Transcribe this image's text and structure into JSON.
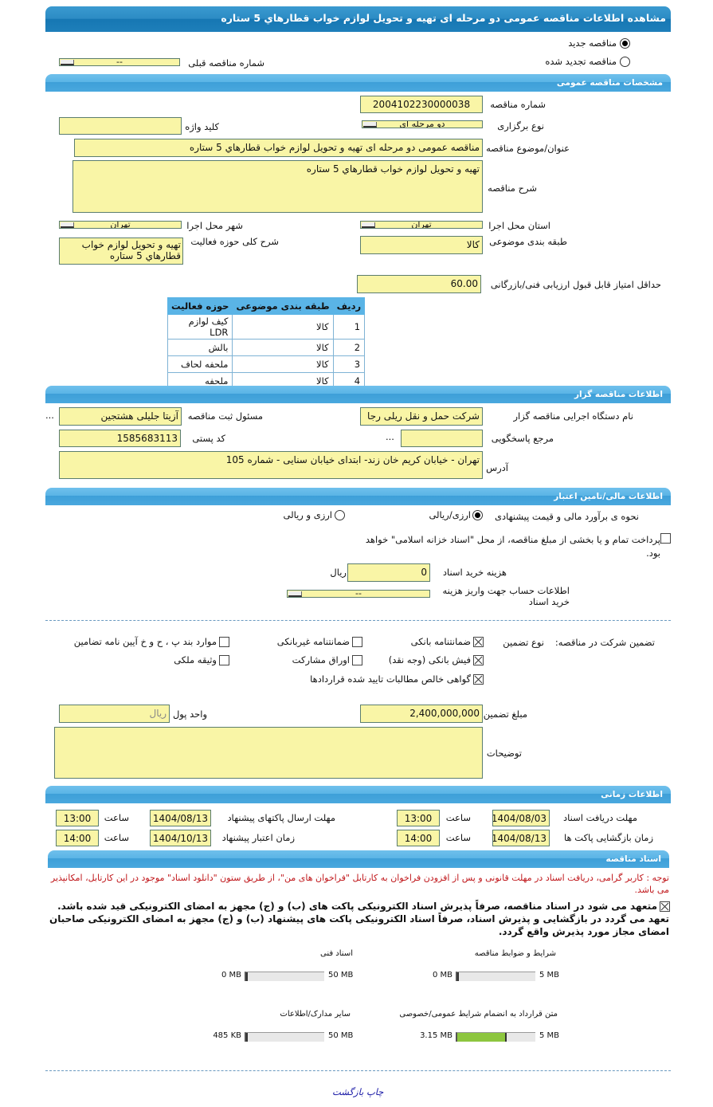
{
  "title": "مشاهده اطلاعات مناقصه عمومی دو مرحله ای تهیه و تحویل لوازم خواب قطارهاي 5 ستاره",
  "tender_state": {
    "new_label": "مناقصه جدید",
    "renewed_label": "مناقصه تجدید شده",
    "selected": "new",
    "prev_number_label": "شماره مناقصه قبلی",
    "prev_number_value": "--"
  },
  "general": {
    "header": "مشخصات مناقصه عمومی",
    "number_label": "شماره مناقصه",
    "number": "2004102230000038",
    "type_label": "نوع برگزاری",
    "type": "دو مرحله ای",
    "keyword_label": "کلید واژه",
    "keyword": "",
    "subject_label": "عنوان/موضوع مناقصه",
    "subject": "مناقصه عمومی دو مرحله ای تهیه و تحویل لوازم خواب قطارهاي 5 ستاره",
    "desc_label": "شرح مناقصه",
    "desc": "تهیه و تحویل لوازم خواب قطارهاي 5 ستاره",
    "province_label": "استان محل اجرا",
    "province": "تهران",
    "city_label": "شهر محل اجرا",
    "city": "تهران",
    "category_label": "طبقه بندی موضوعی",
    "category": "کالا",
    "activity_label": "شرح کلی حوزه فعالیت",
    "activity": "تهیه و تحویل لوازم خواب قطارهاي 5 ستاره",
    "min_score_label": "حداقل امتیاز قابل قبول ارزیابی فنی/بازرگانی",
    "min_score": "60.00",
    "table": {
      "headers": [
        "ردیف",
        "طبقه بندی موضوعی",
        "حوزه فعالیت"
      ],
      "rows": [
        [
          "1",
          "کالا",
          "کیف لوازم LDR"
        ],
        [
          "2",
          "کالا",
          "بالش"
        ],
        [
          "3",
          "کالا",
          "ملحفه لحاف"
        ],
        [
          "4",
          "کالا",
          "ملحفه"
        ]
      ]
    }
  },
  "organizer": {
    "header": "اطلاعات مناقصه گزار",
    "org_label": "نام دستگاه اجرایی مناقصه گزار",
    "org": "شرکت حمل و نقل ریلی رجا",
    "resp_label": "مسئول ثبت مناقصه",
    "resp": "آزیتا جلیلی هشتجین",
    "more": "...",
    "ref_label": "مرجع پاسخگویی",
    "ref": "...",
    "postal_label": "کد پستی",
    "postal": "1585683113",
    "address_label": "آدرس",
    "address": "تهران - خیابان کریم خان زند- ابتدای خیابان سنایی - شماره 105"
  },
  "finance": {
    "header": "اطلاعات مالی/تامین اعتبار",
    "method_label": "نحوه ی برآورد مالی و قیمت پیشنهادی",
    "opt1": "ارزی/ریالی",
    "opt2": "ارزی و ریالی",
    "selected": "opt1",
    "treasury_text": "پرداخت تمام و یا بخشی از مبلغ مناقصه، از محل \"اسناد خزانه اسلامی\" خواهد بود.",
    "treasury_checked": false,
    "doc_cost_label": "هزینه خرید اسناد",
    "doc_cost": "0",
    "currency": "ریال",
    "account_label": "اطلاعات حساب جهت واریز هزینه خرید اسناد",
    "account": "--"
  },
  "guarantee": {
    "label": "تضمین شرکت در مناقصه:",
    "type_label": "نوع تضمین",
    "options": [
      {
        "label": "ضمانتنامه بانکی",
        "checked": true
      },
      {
        "label": "ضمانتنامه غیربانکی",
        "checked": false
      },
      {
        "label": "موارد بند پ ، ح و خ آیین نامه تضامین",
        "checked": false
      },
      {
        "label": "فیش بانکی (وجه نقد)",
        "checked": true
      },
      {
        "label": "اوراق مشارکت",
        "checked": false
      },
      {
        "label": "وثیقه ملکی",
        "checked": false
      },
      {
        "label": "گواهی خالص مطالبات تایید شده قراردادها",
        "checked": true
      }
    ],
    "amount_label": "مبلغ تضمین",
    "amount": "2,400,000,000",
    "unit_label": "واحد پول",
    "unit": "ریال",
    "notes_label": "توضیحات",
    "notes": ""
  },
  "timing": {
    "header": "اطلاعات زمانی",
    "time_label": "ساعت",
    "doc_deadline_label": "مهلت دریافت اسناد",
    "doc_deadline": "1404/08/03",
    "doc_deadline_time": "13:00",
    "send_deadline_label": "مهلت ارسال پاکتهای پیشنهاد",
    "send_deadline": "1404/08/13",
    "send_deadline_time": "13:00",
    "open_label": "زمان بازگشایی پاکت ها",
    "open": "1404/08/13",
    "open_time": "14:00",
    "validity_label": "زمان اعتبار پیشنهاد",
    "validity": "1404/10/13",
    "validity_time": "14:00"
  },
  "docs": {
    "header": "اسناد مناقصه",
    "notice": "توجه : کاربر گرامی، دریافت اسناد در مهلت قانونی و پس از افزودن فراخوان به کارتابل \"فراخوان های من\"، از طریق ستون \"دانلود اسناد\" موجود در این کارتابل، امکانپذیر می باشد.",
    "commit1": "متعهد می شود در اسناد مناقصه، صرفاً پذیرش اسناد الکترونیکی پاکت های (ب) و (ج) مجهز به امضای الکترونیکی قید شده باشد.",
    "commit2": "تعهد می گردد در بازگشایی و پذیرش اسناد، صرفاً اسناد الکترونیکی پاکت های پیشنهاد (ب) و (ج) مجهز به امضای الکترونیکی صاحبان امضای مجاز مورد پذیرش واقع گردد.",
    "commit_checked": true,
    "files": [
      {
        "label": "شرایط و ضوابط مناقصه",
        "used": "0 MB",
        "max": "5 MB",
        "fraction": 0
      },
      {
        "label": "اسناد فنی",
        "used": "0 MB",
        "max": "50 MB",
        "fraction": 0
      },
      {
        "label": "متن قرارداد به انضمام شرایط عمومی/خصوصی",
        "used": "3.15 MB",
        "max": "5 MB",
        "fraction": 0.63
      },
      {
        "label": "سایر مدارک/اطلاعات",
        "used": "485 KB",
        "max": "50 MB",
        "fraction": 0.0095
      }
    ]
  },
  "footer": {
    "print": "چاپ",
    "back": "بازگشت"
  }
}
